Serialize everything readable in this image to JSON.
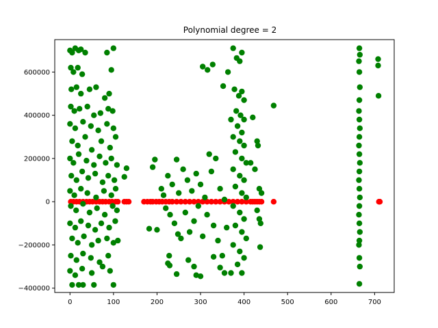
{
  "chart_data": {
    "type": "scatter",
    "title": "Polynomial degree = 2",
    "xlabel": "",
    "ylabel": "",
    "xlim": [
      -35,
      745
    ],
    "ylim": [
      -420000,
      750000
    ],
    "xticks": [
      0,
      100,
      200,
      300,
      400,
      500,
      600,
      700
    ],
    "xtick_labels": [
      "0",
      "100",
      "200",
      "300",
      "400",
      "500",
      "600",
      "700"
    ],
    "yticks": [
      -400000,
      -200000,
      0,
      200000,
      400000,
      600000
    ],
    "ytick_labels": [
      "−400000",
      "−200000",
      "0",
      "200000",
      "400000",
      "600000"
    ],
    "grid": false,
    "legend": "none",
    "series": [
      {
        "color": "#ff0000",
        "points": [
          [
            2,
            0
          ],
          [
            8,
            0
          ],
          [
            15,
            0
          ],
          [
            22,
            0
          ],
          [
            30,
            0
          ],
          [
            38,
            0
          ],
          [
            45,
            0
          ],
          [
            52,
            0
          ],
          [
            60,
            0
          ],
          [
            68,
            0
          ],
          [
            75,
            0
          ],
          [
            82,
            0
          ],
          [
            90,
            0
          ],
          [
            97,
            0
          ],
          [
            105,
            0
          ],
          [
            110,
            0
          ],
          [
            125,
            0
          ],
          [
            130,
            0
          ],
          [
            135,
            0
          ],
          [
            170,
            0
          ],
          [
            178,
            0
          ],
          [
            185,
            0
          ],
          [
            190,
            0
          ],
          [
            198,
            0
          ],
          [
            205,
            0
          ],
          [
            212,
            0
          ],
          [
            220,
            0
          ],
          [
            228,
            0
          ],
          [
            235,
            0
          ],
          [
            245,
            0
          ],
          [
            255,
            0
          ],
          [
            265,
            0
          ],
          [
            275,
            0
          ],
          [
            285,
            0
          ],
          [
            295,
            0
          ],
          [
            305,
            0
          ],
          [
            315,
            0
          ],
          [
            325,
            0
          ],
          [
            335,
            0
          ],
          [
            345,
            0
          ],
          [
            355,
            0
          ],
          [
            365,
            0
          ],
          [
            375,
            0
          ],
          [
            385,
            0
          ],
          [
            395,
            0
          ],
          [
            405,
            0
          ],
          [
            415,
            0
          ],
          [
            420,
            0
          ],
          [
            425,
            0
          ],
          [
            430,
            0
          ],
          [
            435,
            0
          ],
          [
            440,
            0
          ],
          [
            468,
            0
          ],
          [
            710,
            0
          ],
          [
            711,
            0
          ],
          [
            712,
            0
          ]
        ]
      },
      {
        "color": "#008000",
        "points": [
          [
            0,
            700000
          ],
          [
            5,
            690000
          ],
          [
            12,
            710000
          ],
          [
            20,
            700000
          ],
          [
            25,
            705000
          ],
          [
            35,
            690000
          ],
          [
            85,
            690000
          ],
          [
            100,
            710000
          ],
          [
            2,
            620000
          ],
          [
            8,
            600000
          ],
          [
            18,
            620000
          ],
          [
            28,
            590000
          ],
          [
            95,
            610000
          ],
          [
            3,
            520000
          ],
          [
            15,
            530000
          ],
          [
            25,
            500000
          ],
          [
            45,
            520000
          ],
          [
            60,
            530000
          ],
          [
            80,
            480000
          ],
          [
            90,
            500000
          ],
          [
            2,
            440000
          ],
          [
            10,
            420000
          ],
          [
            22,
            430000
          ],
          [
            40,
            440000
          ],
          [
            55,
            400000
          ],
          [
            70,
            410000
          ],
          [
            88,
            430000
          ],
          [
            98,
            420000
          ],
          [
            0,
            360000
          ],
          [
            12,
            340000
          ],
          [
            30,
            370000
          ],
          [
            48,
            350000
          ],
          [
            65,
            330000
          ],
          [
            85,
            360000
          ],
          [
            100,
            340000
          ],
          [
            5,
            280000
          ],
          [
            18,
            260000
          ],
          [
            35,
            300000
          ],
          [
            50,
            240000
          ],
          [
            72,
            280000
          ],
          [
            92,
            250000
          ],
          [
            105,
            300000
          ],
          [
            0,
            200000
          ],
          [
            8,
            180000
          ],
          [
            20,
            220000
          ],
          [
            38,
            190000
          ],
          [
            55,
            170000
          ],
          [
            68,
            210000
          ],
          [
            82,
            180000
          ],
          [
            95,
            200000
          ],
          [
            108,
            170000
          ],
          [
            3,
            120000
          ],
          [
            15,
            100000
          ],
          [
            28,
            140000
          ],
          [
            42,
            110000
          ],
          [
            58,
            130000
          ],
          [
            75,
            90000
          ],
          [
            88,
            120000
          ],
          [
            102,
            100000
          ],
          [
            0,
            50000
          ],
          [
            10,
            30000
          ],
          [
            25,
            60000
          ],
          [
            40,
            40000
          ],
          [
            60,
            20000
          ],
          [
            78,
            50000
          ],
          [
            95,
            30000
          ],
          [
            105,
            60000
          ],
          [
            2,
            -20000
          ],
          [
            14,
            -40000
          ],
          [
            30,
            -10000
          ],
          [
            45,
            -50000
          ],
          [
            62,
            -30000
          ],
          [
            80,
            -60000
          ],
          [
            98,
            -20000
          ],
          [
            108,
            -40000
          ],
          [
            0,
            -100000
          ],
          [
            12,
            -120000
          ],
          [
            25,
            -90000
          ],
          [
            42,
            -110000
          ],
          [
            58,
            -130000
          ],
          [
            72,
            -100000
          ],
          [
            90,
            -120000
          ],
          [
            104,
            -90000
          ],
          [
            5,
            -170000
          ],
          [
            18,
            -190000
          ],
          [
            32,
            -160000
          ],
          [
            50,
            -200000
          ],
          [
            65,
            -180000
          ],
          [
            85,
            -170000
          ],
          [
            100,
            -190000
          ],
          [
            2,
            -250000
          ],
          [
            15,
            -270000
          ],
          [
            30,
            -240000
          ],
          [
            48,
            -260000
          ],
          [
            68,
            -280000
          ],
          [
            88,
            -250000
          ],
          [
            0,
            -320000
          ],
          [
            12,
            -340000
          ],
          [
            28,
            -310000
          ],
          [
            50,
            -330000
          ],
          [
            75,
            -300000
          ],
          [
            92,
            -320000
          ],
          [
            5,
            -385000
          ],
          [
            20,
            -385000
          ],
          [
            30,
            -385000
          ],
          [
            55,
            -385000
          ],
          [
            100,
            -385000
          ],
          [
            130,
            155000
          ],
          [
            125,
            115000
          ],
          [
            110,
            -180000
          ],
          [
            195,
            195000
          ],
          [
            190,
            160000
          ],
          [
            200,
            -130000
          ],
          [
            182,
            -125000
          ],
          [
            210,
            60000
          ],
          [
            215,
            30000
          ],
          [
            220,
            -30000
          ],
          [
            225,
            120000
          ],
          [
            230,
            -60000
          ],
          [
            235,
            80000
          ],
          [
            240,
            -100000
          ],
          [
            245,
            195000
          ],
          [
            250,
            40000
          ],
          [
            255,
            -170000
          ],
          [
            260,
            150000
          ],
          [
            265,
            -50000
          ],
          [
            270,
            100000
          ],
          [
            275,
            -140000
          ],
          [
            280,
            50000
          ],
          [
            285,
            -90000
          ],
          [
            290,
            130000
          ],
          [
            295,
            -20000
          ],
          [
            300,
            80000
          ],
          [
            305,
            -160000
          ],
          [
            310,
            20000
          ],
          [
            315,
            -60000
          ],
          [
            320,
            220000
          ],
          [
            325,
            140000
          ],
          [
            330,
            -110000
          ],
          [
            335,
            200000
          ],
          [
            340,
            -180000
          ],
          [
            345,
            60000
          ],
          [
            350,
            -250000
          ],
          [
            355,
            10000
          ],
          [
            360,
            -120000
          ],
          [
            228,
            -250000
          ],
          [
            229,
            -295000
          ],
          [
            245,
            -335000
          ],
          [
            272,
            -270000
          ],
          [
            285,
            -300000
          ],
          [
            290,
            -340000
          ],
          [
            300,
            -345000
          ],
          [
            330,
            -255000
          ],
          [
            345,
            -305000
          ],
          [
            355,
            -330000
          ],
          [
            370,
            -330000
          ],
          [
            225,
            -285000
          ],
          [
            248,
            -150000
          ],
          [
            305,
            625000
          ],
          [
            316,
            610000
          ],
          [
            328,
            635000
          ],
          [
            352,
            535000
          ],
          [
            363,
            600000
          ],
          [
            375,
            710000
          ],
          [
            383,
            665000
          ],
          [
            390,
            650000
          ],
          [
            395,
            690000
          ],
          [
            378,
            520000
          ],
          [
            388,
            490000
          ],
          [
            395,
            510000
          ],
          [
            400,
            470000
          ],
          [
            382,
            420000
          ],
          [
            392,
            400000
          ],
          [
            400,
            380000
          ],
          [
            370,
            380000
          ],
          [
            385,
            350000
          ],
          [
            395,
            320000
          ],
          [
            375,
            300000
          ],
          [
            390,
            280000
          ],
          [
            400,
            260000
          ],
          [
            380,
            230000
          ],
          [
            395,
            200000
          ],
          [
            405,
            180000
          ],
          [
            375,
            150000
          ],
          [
            390,
            120000
          ],
          [
            400,
            100000
          ],
          [
            380,
            70000
          ],
          [
            395,
            40000
          ],
          [
            405,
            20000
          ],
          [
            375,
            -20000
          ],
          [
            390,
            -50000
          ],
          [
            400,
            -80000
          ],
          [
            380,
            -110000
          ],
          [
            395,
            -140000
          ],
          [
            405,
            -170000
          ],
          [
            375,
            -200000
          ],
          [
            390,
            -230000
          ],
          [
            400,
            -260000
          ],
          [
            385,
            -290000
          ],
          [
            395,
            -330000
          ],
          [
            420,
            390000
          ],
          [
            430,
            280000
          ],
          [
            432,
            260000
          ],
          [
            415,
            180000
          ],
          [
            425,
            150000
          ],
          [
            435,
            60000
          ],
          [
            440,
            40000
          ],
          [
            430,
            -40000
          ],
          [
            435,
            -80000
          ],
          [
            438,
            -100000
          ],
          [
            437,
            -210000
          ],
          [
            468,
            445000
          ],
          [
            665,
            710000
          ],
          [
            666,
            680000
          ],
          [
            664,
            650000
          ],
          [
            665,
            600000
          ],
          [
            666,
            530000
          ],
          [
            665,
            470000
          ],
          [
            664,
            420000
          ],
          [
            665,
            380000
          ],
          [
            666,
            340000
          ],
          [
            665,
            300000
          ],
          [
            664,
            260000
          ],
          [
            665,
            220000
          ],
          [
            666,
            180000
          ],
          [
            665,
            140000
          ],
          [
            664,
            100000
          ],
          [
            665,
            60000
          ],
          [
            666,
            20000
          ],
          [
            665,
            -20000
          ],
          [
            664,
            -60000
          ],
          [
            665,
            -100000
          ],
          [
            666,
            -140000
          ],
          [
            665,
            -180000
          ],
          [
            664,
            -200000
          ],
          [
            665,
            -260000
          ],
          [
            666,
            -300000
          ],
          [
            665,
            -380000
          ],
          [
            708,
            660000
          ],
          [
            708,
            630000
          ],
          [
            709,
            490000
          ]
        ]
      }
    ]
  }
}
